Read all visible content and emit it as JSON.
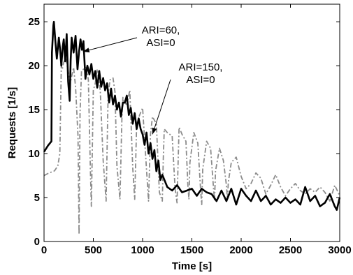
{
  "chart_data": {
    "type": "line",
    "title": "",
    "xlabel": "Time [s]",
    "ylabel": "Requests [1/s]",
    "xlim": [
      0,
      3000
    ],
    "ylim": [
      0,
      27
    ],
    "xticks": [
      0,
      500,
      1000,
      1500,
      2000,
      2500,
      3000
    ],
    "yticks": [
      0,
      5,
      10,
      15,
      20,
      25
    ],
    "grid": false,
    "legend": "none",
    "annotations": [
      {
        "lines": [
          "ARI=60,",
          "ASI=0"
        ],
        "points_to": [
          395,
          21.6
        ]
      },
      {
        "lines": [
          "ARI=150,",
          "ASI=0"
        ],
        "points_to": [
          1100,
          12.2
        ]
      }
    ],
    "series": [
      {
        "color": "#000000",
        "style": "solid",
        "x": [
          0,
          40,
          75,
          80,
          95,
          100,
          115,
          130,
          150,
          165,
          175,
          190,
          200,
          215,
          230,
          245,
          260,
          270,
          280,
          300,
          320,
          340,
          355,
          370,
          385,
          400,
          420,
          440,
          460,
          480,
          500,
          520,
          540,
          560,
          580,
          600,
          620,
          640,
          660,
          680,
          700,
          720,
          740,
          760,
          780,
          800,
          820,
          840,
          860,
          880,
          900,
          920,
          940,
          960,
          980,
          1000,
          1020,
          1040,
          1060,
          1080,
          1100,
          1120,
          1140,
          1160,
          1180,
          1200,
          1250,
          1300,
          1350,
          1400,
          1450,
          1500,
          1550,
          1600,
          1650,
          1700,
          1750,
          1800,
          1850,
          1900,
          1950,
          2000,
          2050,
          2100,
          2150,
          2200,
          2250,
          2300,
          2350,
          2400,
          2450,
          2500,
          2550,
          2600,
          2650,
          2700,
          2750,
          2800,
          2850,
          2900,
          2950,
          2970,
          3000
        ],
        "y": [
          10.2,
          10.9,
          11.4,
          21.5,
          24.6,
          25.0,
          22.8,
          20.8,
          23.2,
          21.6,
          20.0,
          22.2,
          23.0,
          20.5,
          23.6,
          18.2,
          16.0,
          20.6,
          23.2,
          21.5,
          23.4,
          19.6,
          21.6,
          23.0,
          21.8,
          22.8,
          18.5,
          20.0,
          19.0,
          20.2,
          18.5,
          19.4,
          17.5,
          19.4,
          17.6,
          18.6,
          17.2,
          18.0,
          15.8,
          17.4,
          15.6,
          16.6,
          15.0,
          15.8,
          14.2,
          15.8,
          15.8,
          16.6,
          14.4,
          15.2,
          13.4,
          14.6,
          12.8,
          14.0,
          12.8,
          12.2,
          11.0,
          12.4,
          10.0,
          11.2,
          9.4,
          10.4,
          8.0,
          9.2,
          7.0,
          7.6,
          6.2,
          5.8,
          6.4,
          5.6,
          5.8,
          6.0,
          5.2,
          6.0,
          5.6,
          5.4,
          4.6,
          5.8,
          4.6,
          6.0,
          4.2,
          6.0,
          5.2,
          4.6,
          5.8,
          4.6,
          5.2,
          4.2,
          4.8,
          4.4,
          5.0,
          4.4,
          4.8,
          4.2,
          6.2,
          4.6,
          5.2,
          4.0,
          4.4,
          5.4,
          4.0,
          3.6,
          5.0
        ]
      },
      {
        "color": "#8c8c8c",
        "style": "dash-dot",
        "x": [
          0,
          50,
          100,
          110,
          140,
          160,
          175,
          185,
          195,
          220,
          245,
          265,
          300,
          320,
          345,
          355,
          365,
          380,
          400,
          430,
          450,
          470,
          480,
          500,
          520,
          540,
          570,
          600,
          630,
          650,
          670,
          700,
          720,
          740,
          770,
          790,
          800,
          810,
          840,
          870,
          900,
          920,
          930,
          940,
          970,
          1000,
          1040,
          1060,
          1070,
          1080,
          1100,
          1140,
          1170,
          1200,
          1210,
          1220,
          1250,
          1300,
          1330,
          1350,
          1360,
          1370,
          1400,
          1440,
          1460,
          1470,
          1480,
          1520,
          1560,
          1590,
          1600,
          1610,
          1650,
          1690,
          1720,
          1730,
          1740,
          1780,
          1820,
          1850,
          1860,
          1870,
          1900,
          1950,
          2000,
          2050,
          2100,
          2150,
          2200,
          2250,
          2300,
          2350,
          2400,
          2450,
          2500,
          2550,
          2600,
          2650,
          2700,
          2750,
          2800,
          2850,
          2900,
          2950,
          3000
        ],
        "y": [
          7.5,
          7.8,
          8.0,
          8.1,
          8.6,
          10.0,
          20.0,
          19.6,
          20.2,
          21.0,
          19.4,
          18.0,
          19.8,
          17.6,
          12.0,
          0.8,
          14.6,
          19.4,
          19.6,
          19.8,
          18.4,
          8.2,
          4.0,
          17.2,
          18.0,
          19.6,
          17.2,
          9.2,
          4.6,
          16.8,
          18.4,
          18.6,
          17.0,
          8.6,
          4.8,
          14.0,
          16.4,
          15.8,
          15.6,
          17.2,
          8.4,
          4.8,
          9.0,
          13.4,
          14.4,
          15.2,
          8.2,
          4.6,
          8.4,
          12.2,
          14.2,
          13.4,
          5.6,
          4.6,
          9.4,
          12.8,
          12.4,
          12.0,
          6.0,
          4.4,
          9.0,
          13.0,
          12.2,
          11.4,
          6.2,
          4.8,
          9.0,
          12.4,
          11.2,
          5.6,
          4.2,
          8.2,
          11.4,
          10.6,
          6.0,
          4.6,
          8.0,
          10.6,
          9.2,
          6.4,
          4.8,
          6.8,
          9.0,
          9.6,
          7.4,
          6.0,
          6.6,
          7.8,
          7.2,
          5.4,
          6.4,
          7.6,
          6.2,
          5.2,
          6.0,
          6.6,
          5.8,
          5.4,
          6.0,
          5.6,
          6.2,
          5.6,
          4.6,
          6.4,
          5.2
        ]
      }
    ]
  }
}
